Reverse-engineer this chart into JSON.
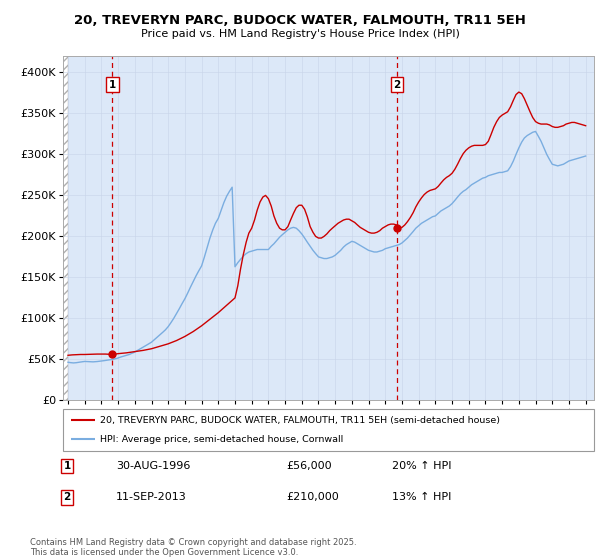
{
  "title": "20, TREVERYN PARC, BUDOCK WATER, FALMOUTH, TR11 5EH",
  "subtitle": "Price paid vs. HM Land Registry's House Price Index (HPI)",
  "ylim": [
    0,
    420000
  ],
  "xlim_start": 1993.7,
  "xlim_end": 2025.5,
  "yticks": [
    0,
    50000,
    100000,
    150000,
    200000,
    250000,
    300000,
    350000,
    400000
  ],
  "ytick_labels": [
    "£0",
    "£50K",
    "£100K",
    "£150K",
    "£200K",
    "£250K",
    "£300K",
    "£350K",
    "£400K"
  ],
  "background_color": "#dce8f8",
  "red_line_color": "#cc0000",
  "blue_line_color": "#7aade0",
  "marker_color": "#cc0000",
  "transaction1_x": 1996.66,
  "transaction1_y": 56000,
  "transaction1_label": "1",
  "transaction2_x": 2013.71,
  "transaction2_y": 210000,
  "transaction2_label": "2",
  "legend_line1": "20, TREVERYN PARC, BUDOCK WATER, FALMOUTH, TR11 5EH (semi-detached house)",
  "legend_line2": "HPI: Average price, semi-detached house, Cornwall",
  "annotation1_date": "30-AUG-1996",
  "annotation1_price": "£56,000",
  "annotation1_hpi": "20% ↑ HPI",
  "annotation2_date": "11-SEP-2013",
  "annotation2_price": "£210,000",
  "annotation2_hpi": "13% ↑ HPI",
  "copyright_text": "Contains HM Land Registry data © Crown copyright and database right 2025.\nThis data is licensed under the Open Government Licence v3.0.",
  "hpi_years": [
    1994.0,
    1994.08,
    1994.17,
    1994.25,
    1994.33,
    1994.42,
    1994.5,
    1994.58,
    1994.67,
    1994.75,
    1994.83,
    1994.92,
    1995.0,
    1995.08,
    1995.17,
    1995.25,
    1995.33,
    1995.42,
    1995.5,
    1995.58,
    1995.67,
    1995.75,
    1995.83,
    1995.92,
    1996.0,
    1996.08,
    1996.17,
    1996.25,
    1996.33,
    1996.42,
    1996.5,
    1996.58,
    1996.67,
    1996.75,
    1996.83,
    1996.92,
    1997.0,
    1997.08,
    1997.17,
    1997.25,
    1997.33,
    1997.42,
    1997.5,
    1997.58,
    1997.67,
    1997.75,
    1997.83,
    1997.92,
    1998.0,
    1998.17,
    1998.33,
    1998.5,
    1998.67,
    1998.83,
    1999.0,
    1999.17,
    1999.33,
    1999.5,
    1999.67,
    1999.83,
    2000.0,
    2000.17,
    2000.33,
    2000.5,
    2000.67,
    2000.83,
    2001.0,
    2001.17,
    2001.33,
    2001.5,
    2001.67,
    2001.83,
    2002.0,
    2002.17,
    2002.33,
    2002.5,
    2002.67,
    2002.83,
    2003.0,
    2003.17,
    2003.33,
    2003.5,
    2003.67,
    2003.83,
    2004.0,
    2004.17,
    2004.33,
    2004.5,
    2004.67,
    2004.83,
    2005.0,
    2005.17,
    2005.33,
    2005.5,
    2005.67,
    2005.83,
    2006.0,
    2006.17,
    2006.33,
    2006.5,
    2006.67,
    2006.83,
    2007.0,
    2007.17,
    2007.33,
    2007.5,
    2007.67,
    2007.83,
    2008.0,
    2008.17,
    2008.33,
    2008.5,
    2008.67,
    2008.83,
    2009.0,
    2009.17,
    2009.33,
    2009.5,
    2009.67,
    2009.83,
    2010.0,
    2010.17,
    2010.33,
    2010.5,
    2010.67,
    2010.83,
    2011.0,
    2011.17,
    2011.33,
    2011.5,
    2011.67,
    2011.83,
    2012.0,
    2012.17,
    2012.33,
    2012.5,
    2012.67,
    2012.83,
    2013.0,
    2013.17,
    2013.33,
    2013.5,
    2013.67,
    2013.83,
    2014.0,
    2014.17,
    2014.33,
    2014.5,
    2014.67,
    2014.83,
    2015.0,
    2015.17,
    2015.33,
    2015.5,
    2015.67,
    2015.83,
    2016.0,
    2016.17,
    2016.33,
    2016.5,
    2016.67,
    2016.83,
    2017.0,
    2017.17,
    2017.33,
    2017.5,
    2017.67,
    2017.83,
    2018.0,
    2018.17,
    2018.33,
    2018.5,
    2018.67,
    2018.83,
    2019.0,
    2019.17,
    2019.33,
    2019.5,
    2019.67,
    2019.83,
    2020.0,
    2020.17,
    2020.33,
    2020.5,
    2020.67,
    2020.83,
    2021.0,
    2021.17,
    2021.33,
    2021.5,
    2021.67,
    2021.83,
    2022.0,
    2022.17,
    2022.33,
    2022.5,
    2022.67,
    2022.83,
    2023.0,
    2023.17,
    2023.33,
    2023.5,
    2023.67,
    2023.83,
    2024.0,
    2024.17,
    2024.33,
    2024.5,
    2024.67,
    2024.83,
    2025.0
  ],
  "hpi_values": [
    46500,
    46200,
    46000,
    45800,
    45700,
    45800,
    46000,
    46300,
    46500,
    46800,
    47000,
    47200,
    47500,
    47400,
    47300,
    47200,
    47100,
    47000,
    47000,
    47100,
    47200,
    47400,
    47600,
    47800,
    48000,
    48200,
    48500,
    48800,
    49000,
    49300,
    49500,
    49800,
    50000,
    50300,
    50800,
    51200,
    51800,
    52500,
    53000,
    53500,
    54000,
    54500,
    55000,
    55500,
    56000,
    56800,
    57500,
    58200,
    59000,
    61000,
    63000,
    65000,
    67000,
    69000,
    71000,
    74000,
    77000,
    80000,
    83000,
    86000,
    90000,
    95000,
    100000,
    106000,
    112000,
    118000,
    124000,
    131000,
    138000,
    145000,
    152000,
    158000,
    164000,
    175000,
    186000,
    198000,
    208000,
    216000,
    222000,
    232000,
    241000,
    249000,
    255000,
    260000,
    163000,
    168000,
    172000,
    176000,
    179000,
    181000,
    182000,
    183000,
    184000,
    184000,
    184000,
    184000,
    184000,
    188000,
    191000,
    195000,
    199000,
    202000,
    205000,
    208000,
    210000,
    211000,
    210000,
    207000,
    203000,
    198000,
    193000,
    188000,
    183000,
    179000,
    175000,
    174000,
    173000,
    173000,
    174000,
    175000,
    177000,
    180000,
    183000,
    187000,
    190000,
    192000,
    194000,
    193000,
    191000,
    189000,
    187000,
    185000,
    183000,
    182000,
    181000,
    181000,
    182000,
    183000,
    185000,
    186000,
    187000,
    188000,
    189000,
    190000,
    192000,
    195000,
    198000,
    202000,
    206000,
    210000,
    213000,
    216000,
    218000,
    220000,
    222000,
    224000,
    225000,
    228000,
    231000,
    233000,
    235000,
    237000,
    240000,
    244000,
    248000,
    252000,
    255000,
    257000,
    260000,
    263000,
    265000,
    267000,
    269000,
    271000,
    272000,
    274000,
    275000,
    276000,
    277000,
    278000,
    278000,
    279000,
    280000,
    285000,
    292000,
    300000,
    308000,
    315000,
    320000,
    323000,
    325000,
    327000,
    328000,
    322000,
    316000,
    308000,
    300000,
    294000,
    288000,
    287000,
    286000,
    287000,
    288000,
    290000,
    292000,
    293000,
    294000,
    295000,
    296000,
    297000,
    298000
  ],
  "price_years": [
    1994.0,
    1994.25,
    1994.5,
    1994.75,
    1995.0,
    1995.25,
    1995.5,
    1995.75,
    1996.0,
    1996.25,
    1996.5,
    1996.66,
    1997.0,
    1997.5,
    1998.0,
    1998.5,
    1999.0,
    1999.5,
    2000.0,
    2000.5,
    2001.0,
    2001.5,
    2002.0,
    2002.5,
    2003.0,
    2003.5,
    2004.0,
    2004.17,
    2004.33,
    2004.5,
    2004.67,
    2004.83,
    2005.0,
    2005.17,
    2005.33,
    2005.5,
    2005.67,
    2005.83,
    2006.0,
    2006.17,
    2006.33,
    2006.5,
    2006.67,
    2006.83,
    2007.0,
    2007.17,
    2007.33,
    2007.5,
    2007.67,
    2007.83,
    2008.0,
    2008.17,
    2008.33,
    2008.5,
    2008.67,
    2008.83,
    2009.0,
    2009.17,
    2009.33,
    2009.5,
    2009.67,
    2009.83,
    2010.0,
    2010.17,
    2010.33,
    2010.5,
    2010.67,
    2010.83,
    2011.0,
    2011.17,
    2011.33,
    2011.5,
    2011.67,
    2011.83,
    2012.0,
    2012.17,
    2012.33,
    2012.5,
    2012.67,
    2012.83,
    2013.0,
    2013.17,
    2013.33,
    2013.5,
    2013.67,
    2013.71,
    2014.0,
    2014.17,
    2014.33,
    2014.5,
    2014.67,
    2014.83,
    2015.0,
    2015.17,
    2015.33,
    2015.5,
    2015.67,
    2015.83,
    2016.0,
    2016.17,
    2016.33,
    2016.5,
    2016.67,
    2016.83,
    2017.0,
    2017.17,
    2017.33,
    2017.5,
    2017.67,
    2017.83,
    2018.0,
    2018.17,
    2018.33,
    2018.5,
    2018.67,
    2018.83,
    2019.0,
    2019.17,
    2019.33,
    2019.5,
    2019.67,
    2019.83,
    2020.0,
    2020.17,
    2020.33,
    2020.5,
    2020.67,
    2020.83,
    2021.0,
    2021.17,
    2021.33,
    2021.5,
    2021.67,
    2021.83,
    2022.0,
    2022.17,
    2022.33,
    2022.5,
    2022.67,
    2022.83,
    2023.0,
    2023.17,
    2023.33,
    2023.5,
    2023.67,
    2023.83,
    2024.0,
    2024.17,
    2024.33,
    2024.5,
    2024.67,
    2024.83,
    2025.0
  ],
  "price_values": [
    55000,
    55500,
    55800,
    56000,
    56000,
    56200,
    56300,
    56500,
    56500,
    56500,
    56200,
    56000,
    57000,
    58000,
    59500,
    61000,
    63000,
    66000,
    69000,
    73000,
    78000,
    84000,
    91000,
    99000,
    107000,
    116000,
    125000,
    140000,
    160000,
    178000,
    193000,
    204000,
    210000,
    220000,
    232000,
    242000,
    248000,
    250000,
    246000,
    237000,
    225000,
    216000,
    210000,
    208000,
    208000,
    212000,
    220000,
    228000,
    235000,
    238000,
    238000,
    233000,
    224000,
    212000,
    205000,
    200000,
    198000,
    198000,
    200000,
    203000,
    207000,
    210000,
    213000,
    216000,
    218000,
    220000,
    221000,
    221000,
    219000,
    217000,
    214000,
    211000,
    209000,
    207000,
    205000,
    204000,
    204000,
    205000,
    207000,
    210000,
    212000,
    214000,
    215000,
    215000,
    214000,
    210000,
    211000,
    214000,
    218000,
    223000,
    229000,
    236000,
    242000,
    247000,
    251000,
    254000,
    256000,
    257000,
    258000,
    261000,
    265000,
    269000,
    272000,
    274000,
    277000,
    282000,
    288000,
    295000,
    301000,
    305000,
    308000,
    310000,
    311000,
    311000,
    311000,
    311000,
    312000,
    316000,
    324000,
    333000,
    340000,
    345000,
    348000,
    350000,
    352000,
    358000,
    366000,
    373000,
    376000,
    374000,
    368000,
    360000,
    352000,
    345000,
    340000,
    338000,
    337000,
    337000,
    337000,
    336000,
    334000,
    333000,
    333000,
    334000,
    335000,
    337000,
    338000,
    339000,
    339000,
    338000,
    337000,
    336000,
    335000
  ]
}
